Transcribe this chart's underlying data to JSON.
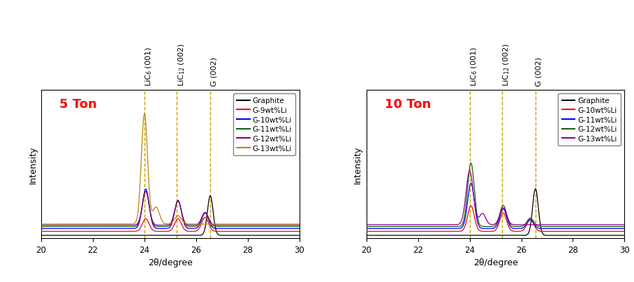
{
  "panel1_title": "5 Ton",
  "panel2_title": "10 Ton",
  "xlabel": "2θ/degree",
  "ylabel": "Intensity",
  "xmin": 20,
  "xmax": 30,
  "dashed_lines": [
    24.0,
    25.25,
    26.55
  ],
  "dashed_labels": [
    "LiC$_6$ (001)",
    "LiC$_{12}$ (002)",
    "G (002)"
  ],
  "panel1_legend": [
    "Graphite",
    "G-9wt%Li",
    "G-10wt%Li",
    "G-11wt%Li",
    "G-12wt%Li",
    "G-13wt%Li"
  ],
  "panel1_colors": [
    "black",
    "red",
    "blue",
    "#1a5c1a",
    "#8B008B",
    "#B8860B"
  ],
  "panel2_legend": [
    "Graphite",
    "G-10wt%Li",
    "G-11wt%Li",
    "G-12wt%Li",
    "G-13wt%Li"
  ],
  "panel2_colors": [
    "black",
    "red",
    "blue",
    "#1a5c1a",
    "#8B008B"
  ],
  "dashed_color": "#C8A000",
  "background_color": "white",
  "ylim_max": 1.05,
  "title_color": "red",
  "title_fontsize": 13
}
